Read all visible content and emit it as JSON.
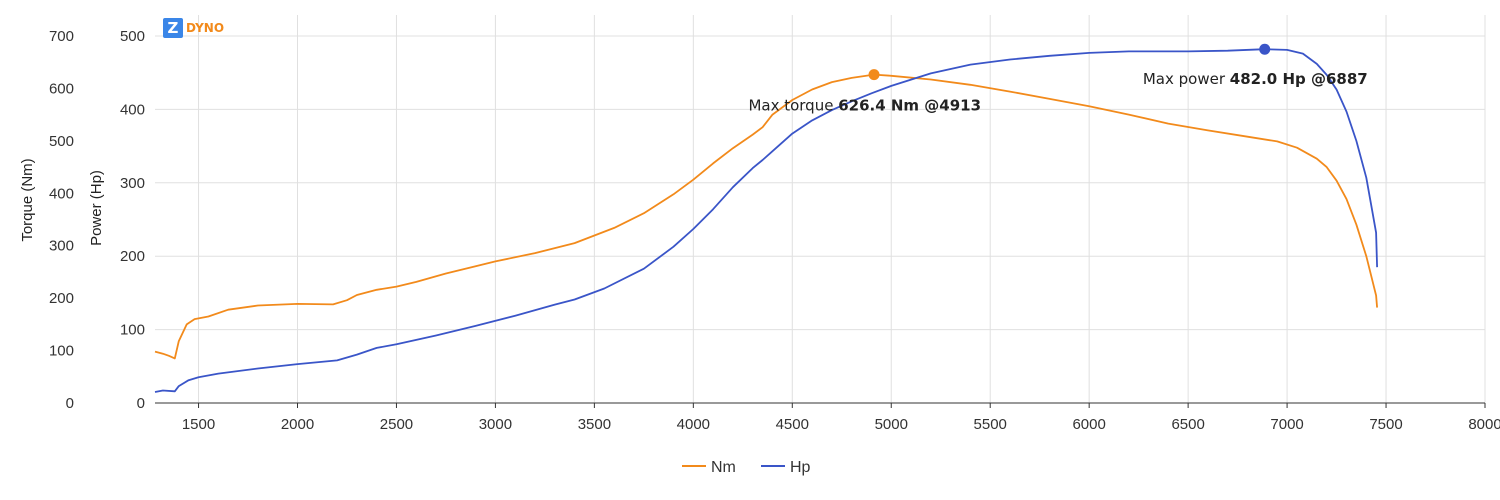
{
  "brand": {
    "logo_letter": "Z",
    "name": "DYNO",
    "color": "#f28a1b",
    "logo_bg": "#3a86e8"
  },
  "colors": {
    "torque": "#f28a1b",
    "power": "#3a55c8",
    "grid": "#e0e0e0",
    "axis": "#333333"
  },
  "chart_data": {
    "type": "line",
    "xlabel": "",
    "ylabel_left": "Torque (Nm)",
    "ylabel_right": "Power (Hp)",
    "xlim": [
      1280,
      8000
    ],
    "x_ticks": [
      1500,
      2000,
      2500,
      3000,
      3500,
      4000,
      4500,
      5000,
      5500,
      6000,
      6500,
      7000,
      7500,
      8000
    ],
    "torque_axis": {
      "lim": [
        0,
        700
      ],
      "ticks": [
        0,
        100,
        200,
        300,
        400,
        500,
        600,
        700
      ]
    },
    "power_axis": {
      "lim": [
        0,
        500
      ],
      "ticks": [
        0,
        100,
        200,
        300,
        400,
        500
      ]
    },
    "series": [
      {
        "name": "Nm",
        "axis": "torque",
        "points": [
          [
            1280,
            98
          ],
          [
            1320,
            94
          ],
          [
            1350,
            90
          ],
          [
            1380,
            85
          ],
          [
            1400,
            118
          ],
          [
            1440,
            150
          ],
          [
            1480,
            160
          ],
          [
            1550,
            165
          ],
          [
            1650,
            178
          ],
          [
            1800,
            186
          ],
          [
            2000,
            189
          ],
          [
            2180,
            188
          ],
          [
            2250,
            196
          ],
          [
            2300,
            206
          ],
          [
            2400,
            216
          ],
          [
            2500,
            222
          ],
          [
            2600,
            231
          ],
          [
            2750,
            247
          ],
          [
            2900,
            261
          ],
          [
            3000,
            270
          ],
          [
            3200,
            286
          ],
          [
            3400,
            305
          ],
          [
            3600,
            334
          ],
          [
            3750,
            362
          ],
          [
            3900,
            398
          ],
          [
            4000,
            426
          ],
          [
            4100,
            457
          ],
          [
            4200,
            486
          ],
          [
            4300,
            512
          ],
          [
            4350,
            526
          ],
          [
            4400,
            550
          ],
          [
            4500,
            578
          ],
          [
            4600,
            598
          ],
          [
            4700,
            612
          ],
          [
            4800,
            620
          ],
          [
            4913,
            626.4
          ],
          [
            5000,
            624
          ],
          [
            5200,
            617
          ],
          [
            5400,
            607
          ],
          [
            5600,
            594
          ],
          [
            5800,
            580
          ],
          [
            6000,
            566
          ],
          [
            6200,
            550
          ],
          [
            6400,
            533
          ],
          [
            6600,
            520
          ],
          [
            6800,
            508
          ],
          [
            6950,
            499
          ],
          [
            7050,
            487
          ],
          [
            7150,
            466
          ],
          [
            7200,
            450
          ],
          [
            7250,
            424
          ],
          [
            7300,
            389
          ],
          [
            7350,
            340
          ],
          [
            7400,
            280
          ],
          [
            7430,
            235
          ],
          [
            7450,
            205
          ],
          [
            7455,
            182
          ]
        ]
      },
      {
        "name": "Hp",
        "axis": "power",
        "points": [
          [
            1280,
            15
          ],
          [
            1320,
            17
          ],
          [
            1380,
            16
          ],
          [
            1400,
            23
          ],
          [
            1450,
            31
          ],
          [
            1500,
            35
          ],
          [
            1600,
            40
          ],
          [
            1800,
            47
          ],
          [
            2000,
            53
          ],
          [
            2200,
            58
          ],
          [
            2300,
            66
          ],
          [
            2400,
            75
          ],
          [
            2500,
            80
          ],
          [
            2700,
            92
          ],
          [
            2900,
            105
          ],
          [
            3100,
            119
          ],
          [
            3300,
            134
          ],
          [
            3400,
            141
          ],
          [
            3550,
            156
          ],
          [
            3750,
            183
          ],
          [
            3900,
            213
          ],
          [
            4000,
            237
          ],
          [
            4100,
            264
          ],
          [
            4200,
            294
          ],
          [
            4300,
            320
          ],
          [
            4350,
            331
          ],
          [
            4400,
            343
          ],
          [
            4500,
            367
          ],
          [
            4600,
            385
          ],
          [
            4700,
            399
          ],
          [
            4800,
            411
          ],
          [
            4900,
            422
          ],
          [
            5000,
            432
          ],
          [
            5200,
            449
          ],
          [
            5400,
            461
          ],
          [
            5600,
            468
          ],
          [
            5800,
            473
          ],
          [
            6000,
            477
          ],
          [
            6200,
            479
          ],
          [
            6500,
            479
          ],
          [
            6700,
            480
          ],
          [
            6887,
            482.0
          ],
          [
            7000,
            481
          ],
          [
            7080,
            476
          ],
          [
            7150,
            462
          ],
          [
            7200,
            447
          ],
          [
            7250,
            427
          ],
          [
            7300,
            397
          ],
          [
            7350,
            357
          ],
          [
            7400,
            307
          ],
          [
            7430,
            262
          ],
          [
            7450,
            232
          ],
          [
            7455,
            185
          ]
        ]
      }
    ],
    "markers": [
      {
        "series": "Nm",
        "x": 4913,
        "y": 626.4,
        "label_prefix": "Max torque ",
        "label_value": "626.4 Nm @4913"
      },
      {
        "series": "Hp",
        "x": 6887,
        "y": 482.0,
        "label_prefix": "Max power ",
        "label_value": "482.0 Hp @6887"
      }
    ],
    "grid": true,
    "legend_position": "bottom-center"
  }
}
